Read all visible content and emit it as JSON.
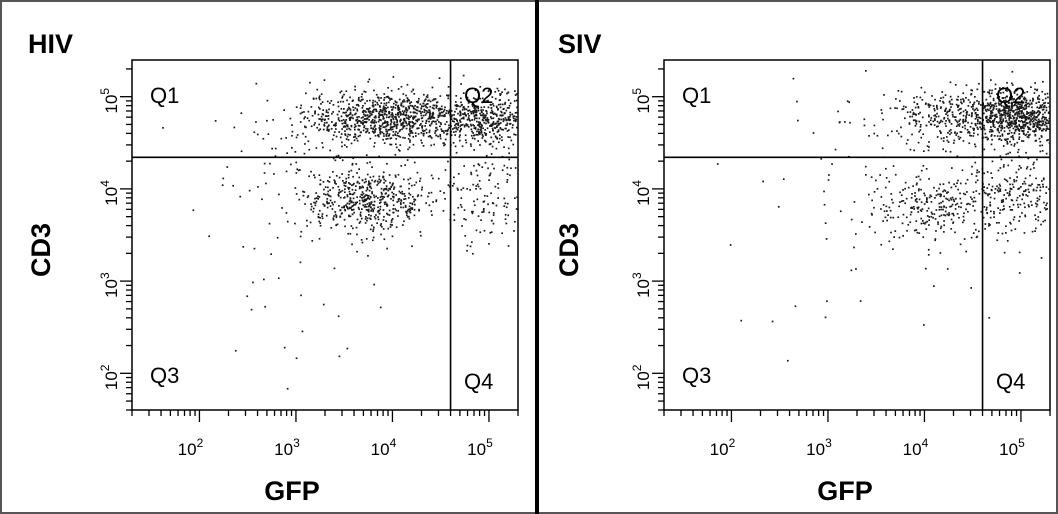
{
  "chart_data": [
    {
      "type": "scatter",
      "title": "HIV",
      "xlabel": "GFP",
      "ylabel": "CD3",
      "xscale": "log",
      "yscale": "log",
      "xlim": [
        20,
        200000
      ],
      "ylim": [
        40,
        250000
      ],
      "x_ticks": [
        {
          "base": "10",
          "exp": "2"
        },
        {
          "base": "10",
          "exp": "3"
        },
        {
          "base": "10",
          "exp": "4"
        },
        {
          "base": "10",
          "exp": "5"
        }
      ],
      "y_ticks": [
        {
          "base": "10",
          "exp": "2"
        },
        {
          "base": "10",
          "exp": "3"
        },
        {
          "base": "10",
          "exp": "4"
        },
        {
          "base": "10",
          "exp": "5"
        }
      ],
      "gate_x": 40000,
      "gate_y": 22000,
      "quadrants": [
        "Q1",
        "Q2",
        "Q3",
        "Q4"
      ],
      "clusters": [
        {
          "n": 950,
          "x_log_mean": 4.0,
          "x_log_sd": 0.45,
          "y_log_mean": 4.78,
          "y_log_sd": 0.14
        },
        {
          "n": 420,
          "x_log_mean": 5.0,
          "x_log_sd": 0.25,
          "y_log_mean": 4.78,
          "y_log_sd": 0.14
        },
        {
          "n": 520,
          "x_log_mean": 3.75,
          "x_log_sd": 0.32,
          "y_log_mean": 3.88,
          "y_log_sd": 0.17
        },
        {
          "n": 150,
          "x_log_mean": 4.95,
          "x_log_sd": 0.25,
          "y_log_mean": 3.95,
          "y_log_sd": 0.28
        },
        {
          "n": 110,
          "x_log_mean": 3.2,
          "x_log_sd": 0.55,
          "y_log_mean": 4.3,
          "y_log_sd": 0.4
        },
        {
          "n": 28,
          "x_log_mean": 3.0,
          "x_log_sd": 0.6,
          "y_log_mean": 3.0,
          "y_log_sd": 0.55
        }
      ]
    },
    {
      "type": "scatter",
      "title": "SIV",
      "xlabel": "GFP",
      "ylabel": "CD3",
      "xscale": "log",
      "yscale": "log",
      "xlim": [
        20,
        200000
      ],
      "ylim": [
        40,
        250000
      ],
      "x_ticks": [
        {
          "base": "10",
          "exp": "2"
        },
        {
          "base": "10",
          "exp": "3"
        },
        {
          "base": "10",
          "exp": "4"
        },
        {
          "base": "10",
          "exp": "5"
        }
      ],
      "y_ticks": [
        {
          "base": "10",
          "exp": "2"
        },
        {
          "base": "10",
          "exp": "3"
        },
        {
          "base": "10",
          "exp": "4"
        },
        {
          "base": "10",
          "exp": "5"
        }
      ],
      "gate_x": 40000,
      "gate_y": 22000,
      "quadrants": [
        "Q1",
        "Q2",
        "Q3",
        "Q4"
      ],
      "clusters": [
        {
          "n": 780,
          "x_log_mean": 5.0,
          "x_log_sd": 0.28,
          "y_log_mean": 4.8,
          "y_log_sd": 0.14
        },
        {
          "n": 320,
          "x_log_mean": 4.25,
          "x_log_sd": 0.35,
          "y_log_mean": 4.78,
          "y_log_sd": 0.16
        },
        {
          "n": 260,
          "x_log_mean": 4.15,
          "x_log_sd": 0.32,
          "y_log_mean": 3.82,
          "y_log_sd": 0.18
        },
        {
          "n": 230,
          "x_log_mean": 4.95,
          "x_log_sd": 0.25,
          "y_log_mean": 3.95,
          "y_log_sd": 0.22
        },
        {
          "n": 60,
          "x_log_mean": 3.4,
          "x_log_sd": 0.6,
          "y_log_mean": 4.2,
          "y_log_sd": 0.5
        },
        {
          "n": 20,
          "x_log_mean": 3.2,
          "x_log_sd": 0.6,
          "y_log_mean": 3.0,
          "y_log_sd": 0.55
        }
      ]
    }
  ]
}
